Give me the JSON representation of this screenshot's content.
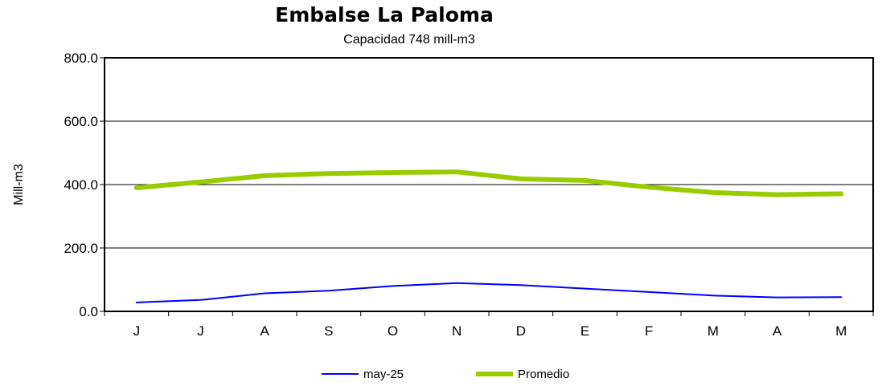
{
  "chart_data": {
    "type": "line",
    "title": "Embalse La Paloma",
    "subtitle": "Capacidad 748 mill-m3",
    "xlabel": "",
    "ylabel": "Mill-m3",
    "categories": [
      "J",
      "J",
      "A",
      "S",
      "O",
      "N",
      "D",
      "E",
      "F",
      "M",
      "A",
      "M"
    ],
    "ylim": [
      0,
      800
    ],
    "yticks": [
      "800.0",
      "600.0",
      "400.0",
      "200.0",
      "0.0"
    ],
    "ytick_values": [
      800,
      600,
      400,
      200,
      0
    ],
    "grid": true,
    "legend_position": "bottom",
    "series": [
      {
        "name": "may-25",
        "color": "#0000ff",
        "values": [
          28,
          36,
          57,
          65,
          80,
          89,
          83,
          72,
          61,
          50,
          44,
          45
        ]
      },
      {
        "name": "Promedio",
        "color": "#99cc00",
        "values": [
          390,
          408,
          428,
          435,
          438,
          440,
          418,
          413,
          392,
          375,
          368,
          371
        ]
      }
    ]
  }
}
